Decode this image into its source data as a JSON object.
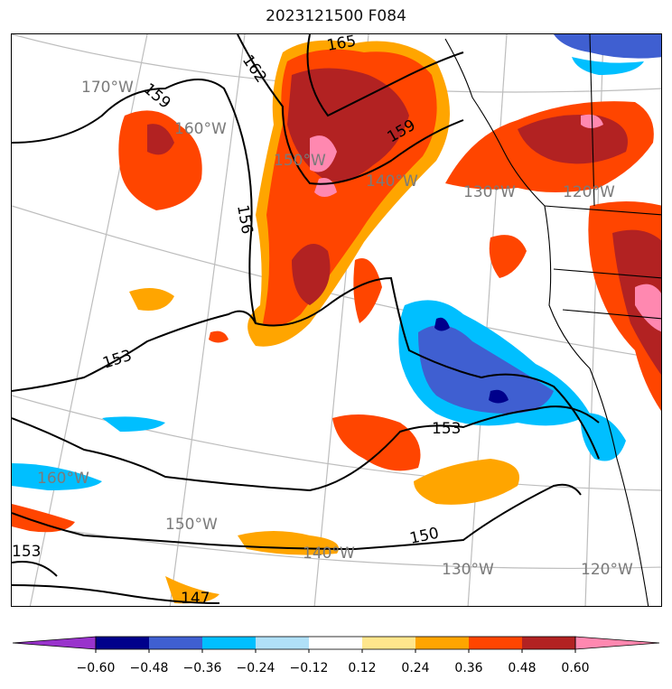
{
  "title": "2023121500 F084",
  "map": {
    "lon_labels": [
      {
        "text": "170°W"
      },
      {
        "text": "160°W"
      },
      {
        "text": "150°W"
      },
      {
        "text": "140°W"
      },
      {
        "text": "130°W"
      },
      {
        "text": "120°W"
      },
      {
        "text": "160°W"
      },
      {
        "text": "150°W"
      },
      {
        "text": "140°W"
      },
      {
        "text": "130°W"
      },
      {
        "text": "120°W"
      }
    ],
    "contour_labels": [
      "165",
      "162",
      "159",
      "159",
      "156",
      "153",
      "153",
      "153",
      "150",
      "147"
    ]
  },
  "colorbar": {
    "ticks": [
      "−0.60",
      "−0.48",
      "−0.36",
      "−0.24",
      "−0.12",
      "0.12",
      "0.24",
      "0.36",
      "0.48",
      "0.60"
    ],
    "colors": [
      "#9933cc",
      "#00008b",
      "#3f5fd1",
      "#00bfff",
      "#b0e0f8",
      "#ffffff",
      "#ffe68c",
      "#ffa500",
      "#ff4500",
      "#b22222",
      "#ff88b0"
    ]
  }
}
